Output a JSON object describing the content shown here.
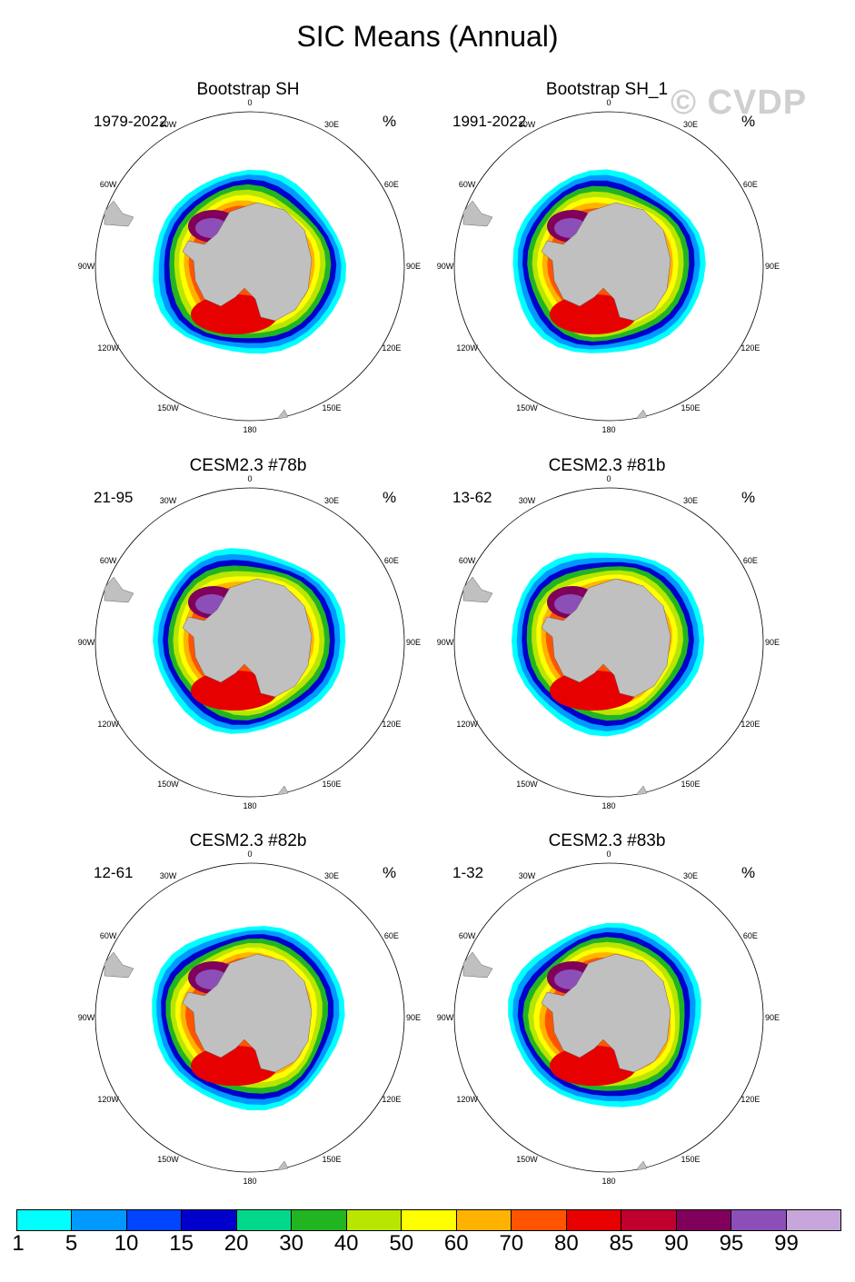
{
  "title": "SIC Means (Annual)",
  "watermark": "© CVDP",
  "panels": [
    {
      "title": "Bootstrap SH",
      "period": "1979-2022",
      "units": "%"
    },
    {
      "title": "Bootstrap SH_1",
      "period": "1991-2022",
      "units": "%"
    },
    {
      "title": "CESM2.3 #78b",
      "period": "21-95",
      "units": "%"
    },
    {
      "title": "CESM2.3 #81b",
      "period": "13-62",
      "units": "%"
    },
    {
      "title": "CESM2.3 #82b",
      "period": "12-61",
      "units": "%"
    },
    {
      "title": "CESM2.3 #83b",
      "period": "1-32",
      "units": "%"
    }
  ],
  "lon_labels": {
    "0": "0",
    "30E": "30E",
    "60E": "60E",
    "90E": "90E",
    "120E": "120E",
    "150E": "150E",
    "180": "180",
    "150W": "150W",
    "120W": "120W",
    "90W": "90W",
    "60W": "60W",
    "30W": "30W"
  },
  "colorbar": {
    "colors": [
      "#00ffff",
      "#0099ff",
      "#0044ff",
      "#0000cc",
      "#00d98c",
      "#22b522",
      "#b8e600",
      "#ffff00",
      "#ffb300",
      "#ff5500",
      "#e60000",
      "#c0002e",
      "#80005c",
      "#8c4fb8",
      "#c6a6db"
    ],
    "labels": [
      "1",
      "5",
      "10",
      "15",
      "20",
      "30",
      "40",
      "50",
      "60",
      "70",
      "80",
      "85",
      "90",
      "95",
      "99"
    ]
  }
}
